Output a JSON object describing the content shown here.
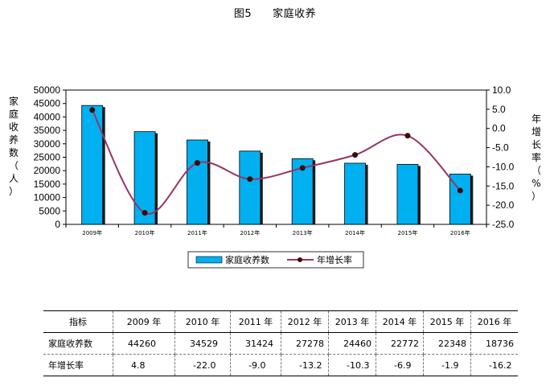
{
  "figure": {
    "number": "图5",
    "title": "家庭收养"
  },
  "chart_data": {
    "type": "bar+line",
    "categories": [
      "2009年",
      "2010年",
      "2011年",
      "2012年",
      "2013年",
      "2014年",
      "2015年",
      "2016年"
    ],
    "series": [
      {
        "name": "家庭收养数",
        "type": "bar",
        "axis": "left",
        "color": "#00b0f0",
        "values": [
          44260,
          34529,
          31424,
          27278,
          24460,
          22772,
          22348,
          18736
        ]
      },
      {
        "name": "年增长率",
        "type": "line",
        "axis": "right",
        "color": "#993366",
        "marker_color": "#3b0d0d",
        "values": [
          4.8,
          -22.0,
          -9.0,
          -13.2,
          -10.3,
          -6.9,
          -1.9,
          -16.2
        ]
      }
    ],
    "y_left": {
      "label": "家庭收养数（人）",
      "min": 0,
      "max": 50000,
      "ticks": [
        "0",
        "5000",
        "10000",
        "15000",
        "20000",
        "25000",
        "30000",
        "35000",
        "40000",
        "45000",
        "50000"
      ]
    },
    "y_right": {
      "label": "年增长率（%）",
      "min": -25,
      "max": 10,
      "ticks": [
        "10.0",
        "5.0",
        "0.0",
        "-5.0",
        "-10.0",
        "-15.0",
        "-20.0",
        "-25.0"
      ]
    },
    "legend": {
      "position": "bottom"
    },
    "grid": false
  },
  "table": {
    "header": [
      "指标",
      "2009 年",
      "2010 年",
      "2011 年",
      "2012 年",
      "2013 年",
      "2014 年",
      "2015 年",
      "2016 年"
    ],
    "rows": [
      {
        "label": "家庭收养数",
        "values": [
          "44260",
          "34529",
          "31424",
          "27278",
          "24460",
          "22772",
          "22348",
          "18736"
        ]
      },
      {
        "label": "年增长率",
        "values": [
          "4.8",
          "-22.0",
          "-9.0",
          "-13.2",
          "-10.3",
          "-6.9",
          "-1.9",
          "-16.2"
        ]
      }
    ]
  }
}
